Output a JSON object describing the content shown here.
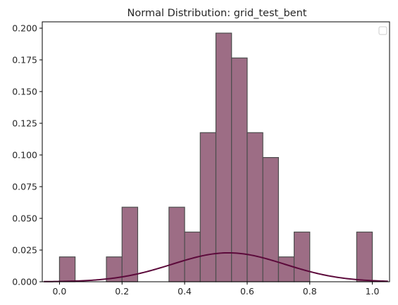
{
  "chart_data": {
    "type": "bar",
    "title": "Normal Distribution: grid_test_bent",
    "xlabel": "",
    "ylabel": "",
    "xlim": [
      -0.055,
      1.055
    ],
    "ylim": [
      0,
      0.205
    ],
    "xticks": [
      0.0,
      0.2,
      0.4,
      0.6,
      0.8,
      1.0
    ],
    "xtick_labels": [
      "0.0",
      "0.2",
      "0.4",
      "0.6",
      "0.8",
      "1.0"
    ],
    "yticks": [
      0.0,
      0.025,
      0.05,
      0.075,
      0.1,
      0.125,
      0.15,
      0.175,
      0.2
    ],
    "ytick_labels": [
      "0.000",
      "0.025",
      "0.050",
      "0.075",
      "0.100",
      "0.125",
      "0.150",
      "0.175",
      "0.200"
    ],
    "grid": false,
    "legend": {
      "placement": "top-right",
      "entries": []
    },
    "histogram": {
      "bin_width": 0.05,
      "bins": [
        {
          "x0": 0.0,
          "x1": 0.05,
          "value": 0.0196
        },
        {
          "x0": 0.15,
          "x1": 0.2,
          "value": 0.0196
        },
        {
          "x0": 0.2,
          "x1": 0.25,
          "value": 0.0588
        },
        {
          "x0": 0.35,
          "x1": 0.4,
          "value": 0.0588
        },
        {
          "x0": 0.4,
          "x1": 0.45,
          "value": 0.0392
        },
        {
          "x0": 0.45,
          "x1": 0.5,
          "value": 0.1176
        },
        {
          "x0": 0.5,
          "x1": 0.55,
          "value": 0.1961
        },
        {
          "x0": 0.55,
          "x1": 0.6,
          "value": 0.1765
        },
        {
          "x0": 0.6,
          "x1": 0.65,
          "value": 0.1176
        },
        {
          "x0": 0.65,
          "x1": 0.7,
          "value": 0.098
        },
        {
          "x0": 0.7,
          "x1": 0.75,
          "value": 0.0196
        },
        {
          "x0": 0.75,
          "x1": 0.8,
          "value": 0.0392
        },
        {
          "x0": 0.95,
          "x1": 1.0,
          "value": 0.0392
        }
      ],
      "fill_color": "#9d6d85",
      "edge_color": "#4d4d4d"
    },
    "curve": {
      "type": "normal_pdf",
      "mean": 0.54,
      "std": 0.18,
      "peak": 0.0228,
      "x_range": [
        -0.05,
        1.05
      ],
      "color": "#5c0a3b"
    }
  }
}
